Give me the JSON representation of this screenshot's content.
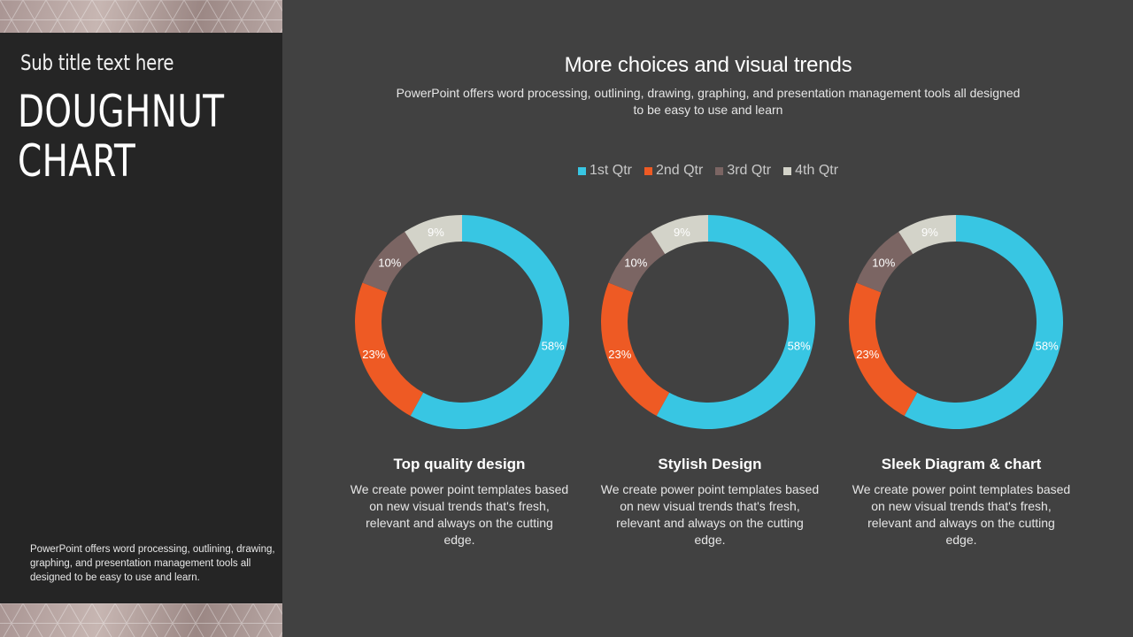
{
  "sidebar": {
    "subtitle": "Sub title text here",
    "title_line1": "DOUGHNUT",
    "title_line2": "CHART",
    "description": "PowerPoint offers word processing, outlining, drawing, graphing, and presentation management tools all designed to be easy to use and learn."
  },
  "header": {
    "title": "More choices and visual trends",
    "description": "PowerPoint offers word processing, outlining, drawing, graphing, and presentation management tools all designed to be easy to use and learn"
  },
  "legend": [
    {
      "label": "1st Qtr",
      "color": "#38c6e3"
    },
    {
      "label": "2nd Qtr",
      "color": "#ee5a24"
    },
    {
      "label": "3rd Qtr",
      "color": "#7b6563"
    },
    {
      "label": "4th Qtr",
      "color": "#d3d3c9"
    }
  ],
  "chart_data": [
    {
      "type": "pie",
      "categories": [
        "1st Qtr",
        "2nd Qtr",
        "3rd Qtr",
        "4th Qtr"
      ],
      "values": [
        58,
        23,
        10,
        9
      ],
      "data_labels": [
        "58%",
        "23%",
        "10%",
        "9%"
      ],
      "colors": [
        "#38c6e3",
        "#ee5a24",
        "#7b6563",
        "#d3d3c9"
      ],
      "legend": "top"
    },
    {
      "type": "pie",
      "categories": [
        "1st Qtr",
        "2nd Qtr",
        "3rd Qtr",
        "4th Qtr"
      ],
      "values": [
        58,
        23,
        10,
        9
      ],
      "data_labels": [
        "58%",
        "23%",
        "10%",
        "9%"
      ],
      "colors": [
        "#38c6e3",
        "#ee5a24",
        "#7b6563",
        "#d3d3c9"
      ],
      "legend": "top"
    },
    {
      "type": "pie",
      "categories": [
        "1st Qtr",
        "2nd Qtr",
        "3rd Qtr",
        "4th Qtr"
      ],
      "values": [
        58,
        23,
        10,
        9
      ],
      "data_labels": [
        "58%",
        "23%",
        "10%",
        "9%"
      ],
      "colors": [
        "#38c6e3",
        "#ee5a24",
        "#7b6563",
        "#d3d3c9"
      ],
      "legend": "top"
    }
  ],
  "captions": [
    {
      "title": "Top quality design",
      "text": "We create power point templates based on new visual trends that's fresh, relevant and always on the cutting edge."
    },
    {
      "title": "Stylish Design",
      "text": "We create power point templates based on new visual trends that's fresh, relevant and always on the cutting edge."
    },
    {
      "title": "Sleek Diagram & chart",
      "text": "We create power point templates based on new visual trends that's fresh, relevant and always on the cutting edge."
    }
  ]
}
